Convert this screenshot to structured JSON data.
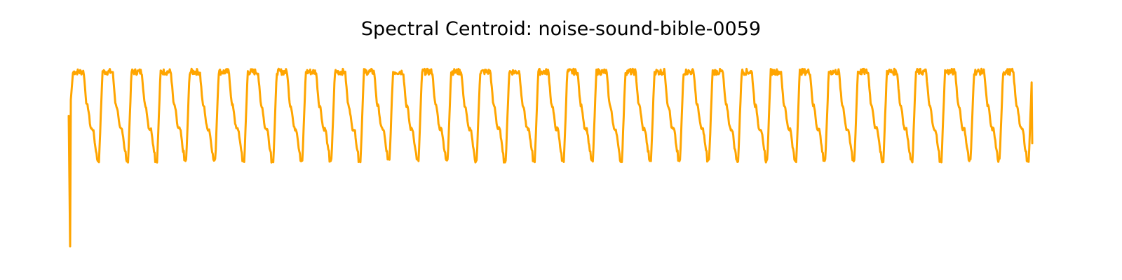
{
  "chart_data": {
    "type": "line",
    "title": "Spectral Centroid: noise-sound-bible-0059",
    "xlabel": "",
    "ylabel": "",
    "axes_visible": false,
    "grid": false,
    "ylim": [
      0,
      1
    ],
    "color": "#ffa500",
    "pattern": {
      "cycles": 33,
      "samples_per_cycle": 48,
      "low": 0.25,
      "high": 0.52,
      "onset_value": 0.0,
      "initial_value": 0.38
    }
  }
}
